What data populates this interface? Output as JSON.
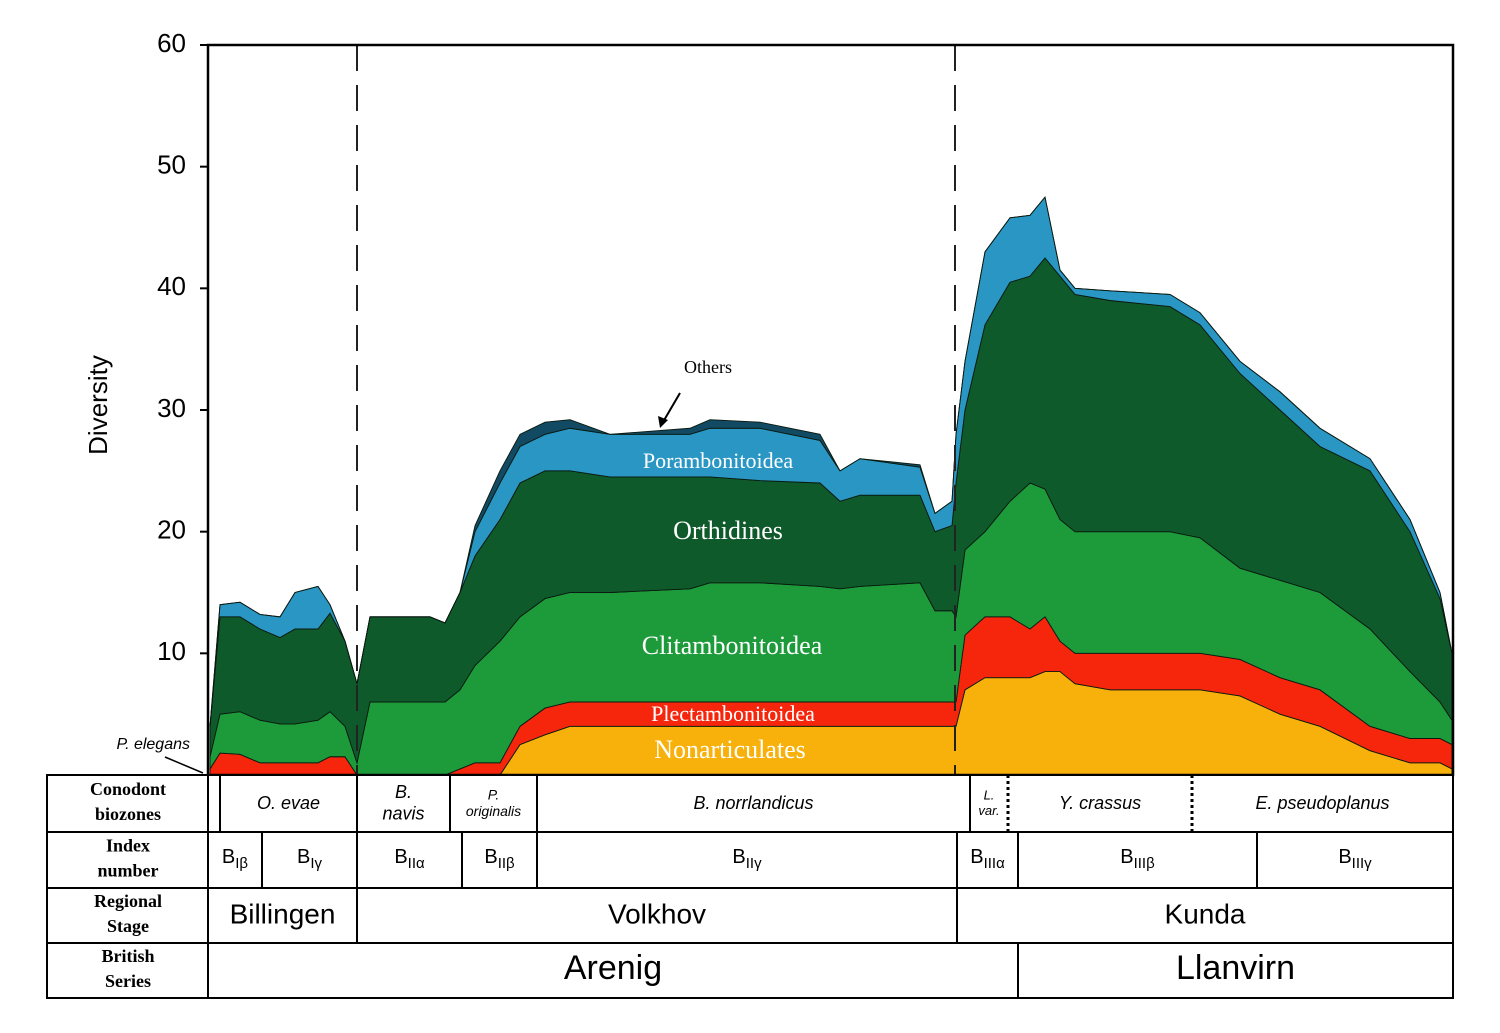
{
  "chart_data": {
    "type": "stacked_area",
    "y_label": "Diversity",
    "ylim": [
      0,
      60
    ],
    "yticks": [
      10,
      20,
      30,
      40,
      50,
      60
    ],
    "xlim": [
      0,
      1245
    ],
    "x": [
      2,
      12,
      32,
      52,
      72,
      87,
      110,
      122,
      137,
      149,
      162,
      222,
      237,
      252,
      267,
      292,
      312,
      337,
      362,
      402,
      482,
      502,
      552,
      612,
      632,
      652,
      712,
      727,
      744,
      748,
      757,
      777,
      802,
      822,
      837,
      852,
      867,
      902,
      962,
      992,
      1032,
      1072,
      1112,
      1162,
      1202,
      1232,
      1244
    ],
    "series": [
      {
        "name": "Nonarticulates",
        "color": "#f7b10a",
        "values": [
          0,
          0,
          0,
          0,
          0,
          0,
          0,
          0,
          0,
          0,
          0,
          0,
          0,
          0,
          0,
          0,
          2.5,
          3.3,
          4,
          4,
          4,
          4,
          4,
          4,
          4,
          4,
          4,
          4,
          4,
          4,
          7,
          8,
          8,
          8,
          8.5,
          8.5,
          7.5,
          7,
          7,
          7,
          6.5,
          5,
          4,
          2,
          1,
          1,
          0.5
        ]
      },
      {
        "name": "Plectambonitoidea",
        "color": "#f5260c",
        "values": [
          0.5,
          1.8,
          1.7,
          1,
          1,
          1,
          1,
          1.5,
          1.5,
          0,
          0,
          0,
          0,
          0.5,
          1,
          1,
          1.5,
          2.2,
          2,
          2,
          2,
          2,
          2,
          2,
          2,
          2,
          2,
          2,
          2,
          2,
          4.5,
          5,
          5,
          4,
          4.5,
          2.5,
          2.5,
          3,
          3,
          3,
          3,
          3,
          3,
          2,
          2,
          2,
          2
        ]
      },
      {
        "name": "Clitambonitoidea",
        "color": "#1d9a3a",
        "values": [
          1,
          3.2,
          3.5,
          3.5,
          3.2,
          3.2,
          3.5,
          3.7,
          2.5,
          1,
          6,
          6,
          6,
          6.5,
          8,
          10,
          9,
          9,
          9,
          9,
          9.3,
          9.8,
          9.8,
          9.5,
          9.3,
          9.5,
          9.8,
          7.5,
          7.5,
          7,
          7,
          7,
          9.5,
          12,
          10.5,
          10,
          10,
          10,
          10,
          9.5,
          7.5,
          8,
          8,
          8,
          5.5,
          3,
          2
        ]
      },
      {
        "name": "Orthidines",
        "color": "#0f5a2b",
        "values": [
          2.5,
          8,
          7.8,
          7.5,
          7.1,
          7.8,
          7.5,
          8.1,
          7,
          6.5,
          7,
          7,
          6.5,
          8,
          9,
          10,
          11,
          10.5,
          10,
          9.5,
          9.2,
          8.7,
          8.4,
          8.5,
          7.2,
          7.5,
          7.2,
          6.5,
          7,
          11,
          11.5,
          17,
          18,
          17,
          19,
          20,
          19.5,
          19,
          18.5,
          17.5,
          16,
          14,
          12,
          13,
          11.5,
          8.5,
          5.5
        ]
      },
      {
        "name": "Porambonitoidea",
        "color": "#2996c4",
        "values": [
          0,
          1,
          1.2,
          1.2,
          1.7,
          3,
          3.5,
          0.7,
          0,
          0,
          0,
          0,
          0,
          0,
          2,
          3,
          3,
          3,
          3.5,
          3.5,
          3.5,
          4,
          4.3,
          3.5,
          2.5,
          3,
          2.3,
          1.5,
          2,
          4,
          4,
          6,
          5.3,
          5,
          5,
          0.5,
          0.5,
          0.8,
          1,
          1,
          1,
          1.5,
          1.5,
          1,
          1,
          0.5,
          0
        ]
      },
      {
        "name": "Others",
        "color": "#124a63",
        "values": [
          0,
          0,
          0,
          0,
          0,
          0,
          0,
          0,
          0,
          0,
          0,
          0,
          0,
          0,
          0.5,
          1,
          1,
          1,
          0.7,
          0,
          0.5,
          0.7,
          0.5,
          0.5,
          0,
          0,
          0.2,
          0,
          0,
          0,
          0,
          0,
          0,
          0,
          0,
          0,
          0,
          0,
          0,
          0,
          0,
          0,
          0,
          0,
          0,
          0,
          0
        ]
      }
    ],
    "annotations": [
      "P. elegans"
    ]
  },
  "table": {
    "row_headers": [
      [
        "Conodont",
        "biozones"
      ],
      [
        "Index",
        "number"
      ],
      [
        "Regional",
        "Stage"
      ],
      [
        "British",
        "Series"
      ]
    ],
    "conodont_biozones": [
      [
        "O. evae"
      ],
      [
        "B.",
        "navis"
      ],
      [
        "P.",
        "originalis"
      ],
      [
        "B. norrlandicus"
      ],
      [
        "L.",
        "var."
      ],
      [
        "Y. crassus"
      ],
      [
        "E. pseudoplanus"
      ]
    ],
    "index_numbers": [
      [
        "B",
        "Iβ"
      ],
      [
        "B",
        "Iγ"
      ],
      [
        "B",
        "IIα"
      ],
      [
        "B",
        "IIβ"
      ],
      [
        "B",
        "IIγ"
      ],
      [
        "B",
        "IIIα"
      ],
      [
        "B",
        "IIIβ"
      ],
      [
        "B",
        "IIIγ"
      ]
    ],
    "regional_stages": [
      "Billingen",
      "Volkhov",
      "Kunda"
    ],
    "british_series": [
      "Arenig",
      "Llanvirn"
    ]
  }
}
